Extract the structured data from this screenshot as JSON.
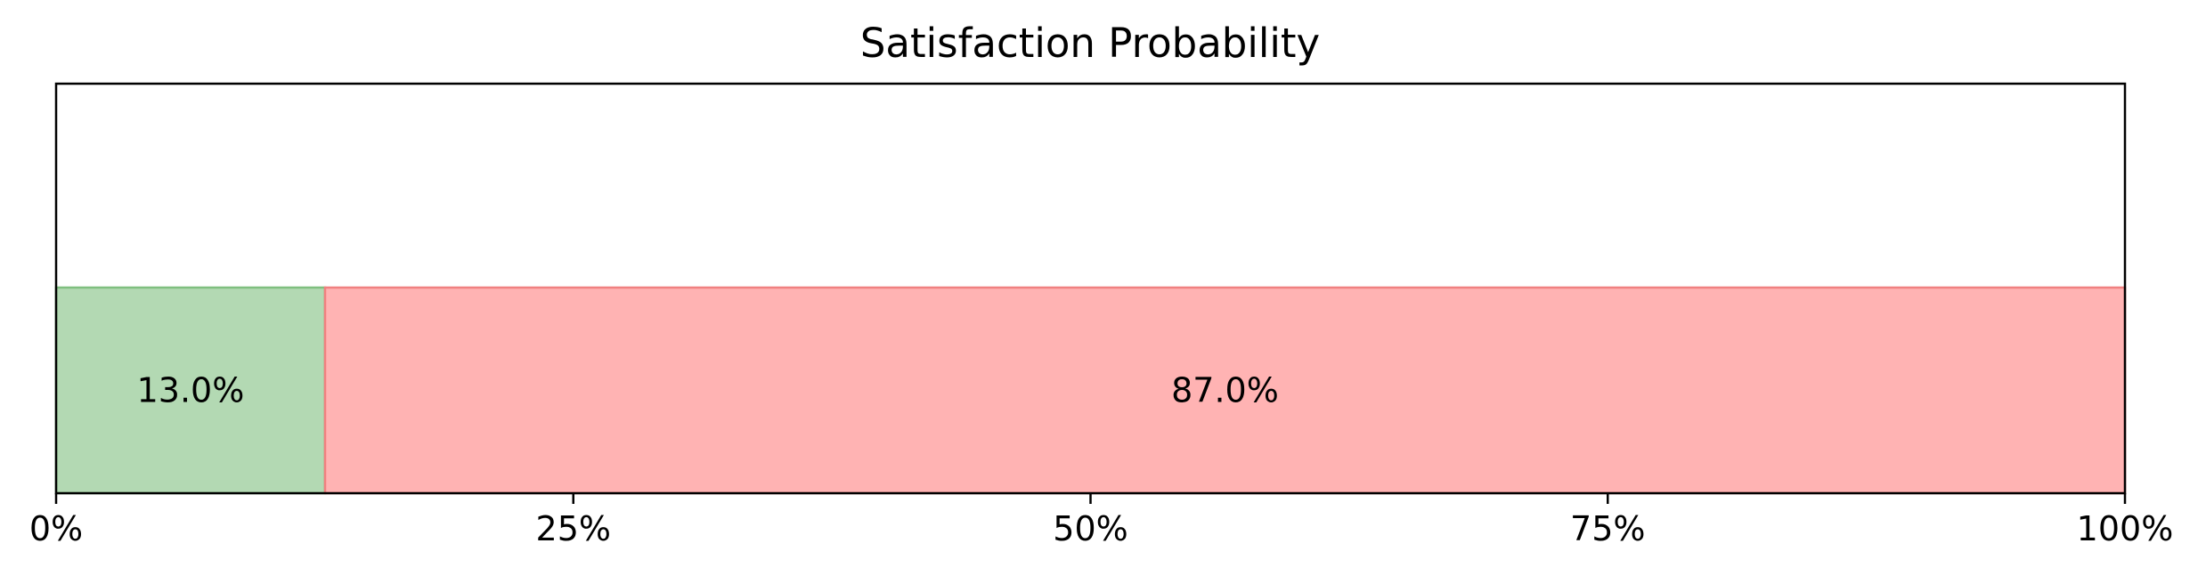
{
  "chart_data": {
    "type": "bar",
    "orientation": "horizontal-stacked",
    "title": "Satisfaction Probability",
    "xlabel": "",
    "ylabel": "",
    "xlim": [
      0,
      100
    ],
    "grid": false,
    "x_ticks": [
      {
        "value": 0,
        "label": "0%"
      },
      {
        "value": 25,
        "label": "25%"
      },
      {
        "value": 50,
        "label": "50%"
      },
      {
        "value": 75,
        "label": "75%"
      },
      {
        "value": 100,
        "label": "100%"
      }
    ],
    "segments": [
      {
        "value": 13.0,
        "label": "13.0%",
        "color": "#b3d9b3",
        "edge_color": "#7fbf7f"
      },
      {
        "value": 87.0,
        "label": "87.0%",
        "color": "#ffb3b3",
        "edge_color": "#f08080"
      }
    ]
  }
}
